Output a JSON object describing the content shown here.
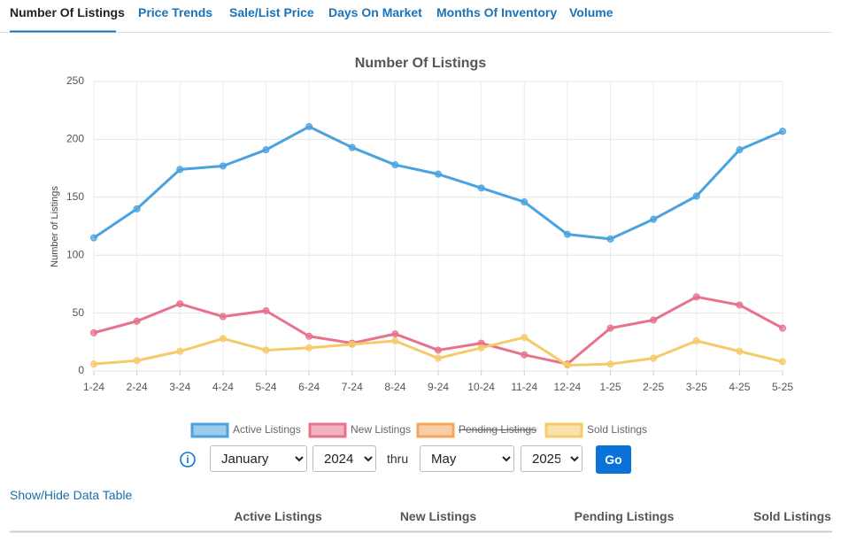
{
  "tabs": [
    "Number Of Listings",
    "Price Trends",
    "Sale/List Price",
    "Days On Market",
    "Months Of Inventory",
    "Volume"
  ],
  "chart_data": {
    "type": "line",
    "title": "Number Of Listings",
    "y_label": "Number of Listings",
    "categories": [
      "1-24",
      "2-24",
      "3-24",
      "4-24",
      "5-24",
      "6-24",
      "7-24",
      "8-24",
      "9-24",
      "10-24",
      "11-24",
      "12-24",
      "1-25",
      "2-25",
      "3-25",
      "4-25",
      "5-25"
    ],
    "series": [
      {
        "name": "Active Listings",
        "color": "#4aa3df",
        "values": [
          115,
          140,
          174,
          177,
          191,
          211,
          193,
          178,
          170,
          158,
          146,
          118,
          114,
          131,
          151,
          191,
          207
        ]
      },
      {
        "name": "New Listings",
        "color": "#e8718d",
        "values": [
          33,
          43,
          58,
          47,
          52,
          30,
          24,
          32,
          18,
          24,
          14,
          6,
          37,
          44,
          64,
          57,
          37
        ]
      },
      {
        "name": "Pending Listings",
        "color": "#f5a65b",
        "hidden": true,
        "values": [
          null,
          null,
          null,
          null,
          null,
          null,
          null,
          null,
          null,
          null,
          null,
          null,
          null,
          null,
          null,
          null,
          null
        ]
      },
      {
        "name": "Sold Listings",
        "color": "#f5cb6a",
        "values": [
          6,
          9,
          17,
          28,
          18,
          20,
          23,
          26,
          11,
          20,
          29,
          5,
          6,
          11,
          26,
          17,
          8
        ]
      }
    ],
    "ylim": [
      0,
      250
    ],
    "yticks": [
      0,
      50,
      100,
      150,
      200,
      250
    ],
    "grid": true
  },
  "controls": {
    "start_month": "January",
    "start_year": "2024",
    "thru": "thru",
    "end_month": "May",
    "end_year": "2025",
    "go": "Go"
  },
  "show_hide": "Show/Hide Data Table",
  "table": {
    "headers": [
      "Active Listings",
      "New Listings",
      "Pending Listings",
      "Sold Listings"
    ]
  }
}
